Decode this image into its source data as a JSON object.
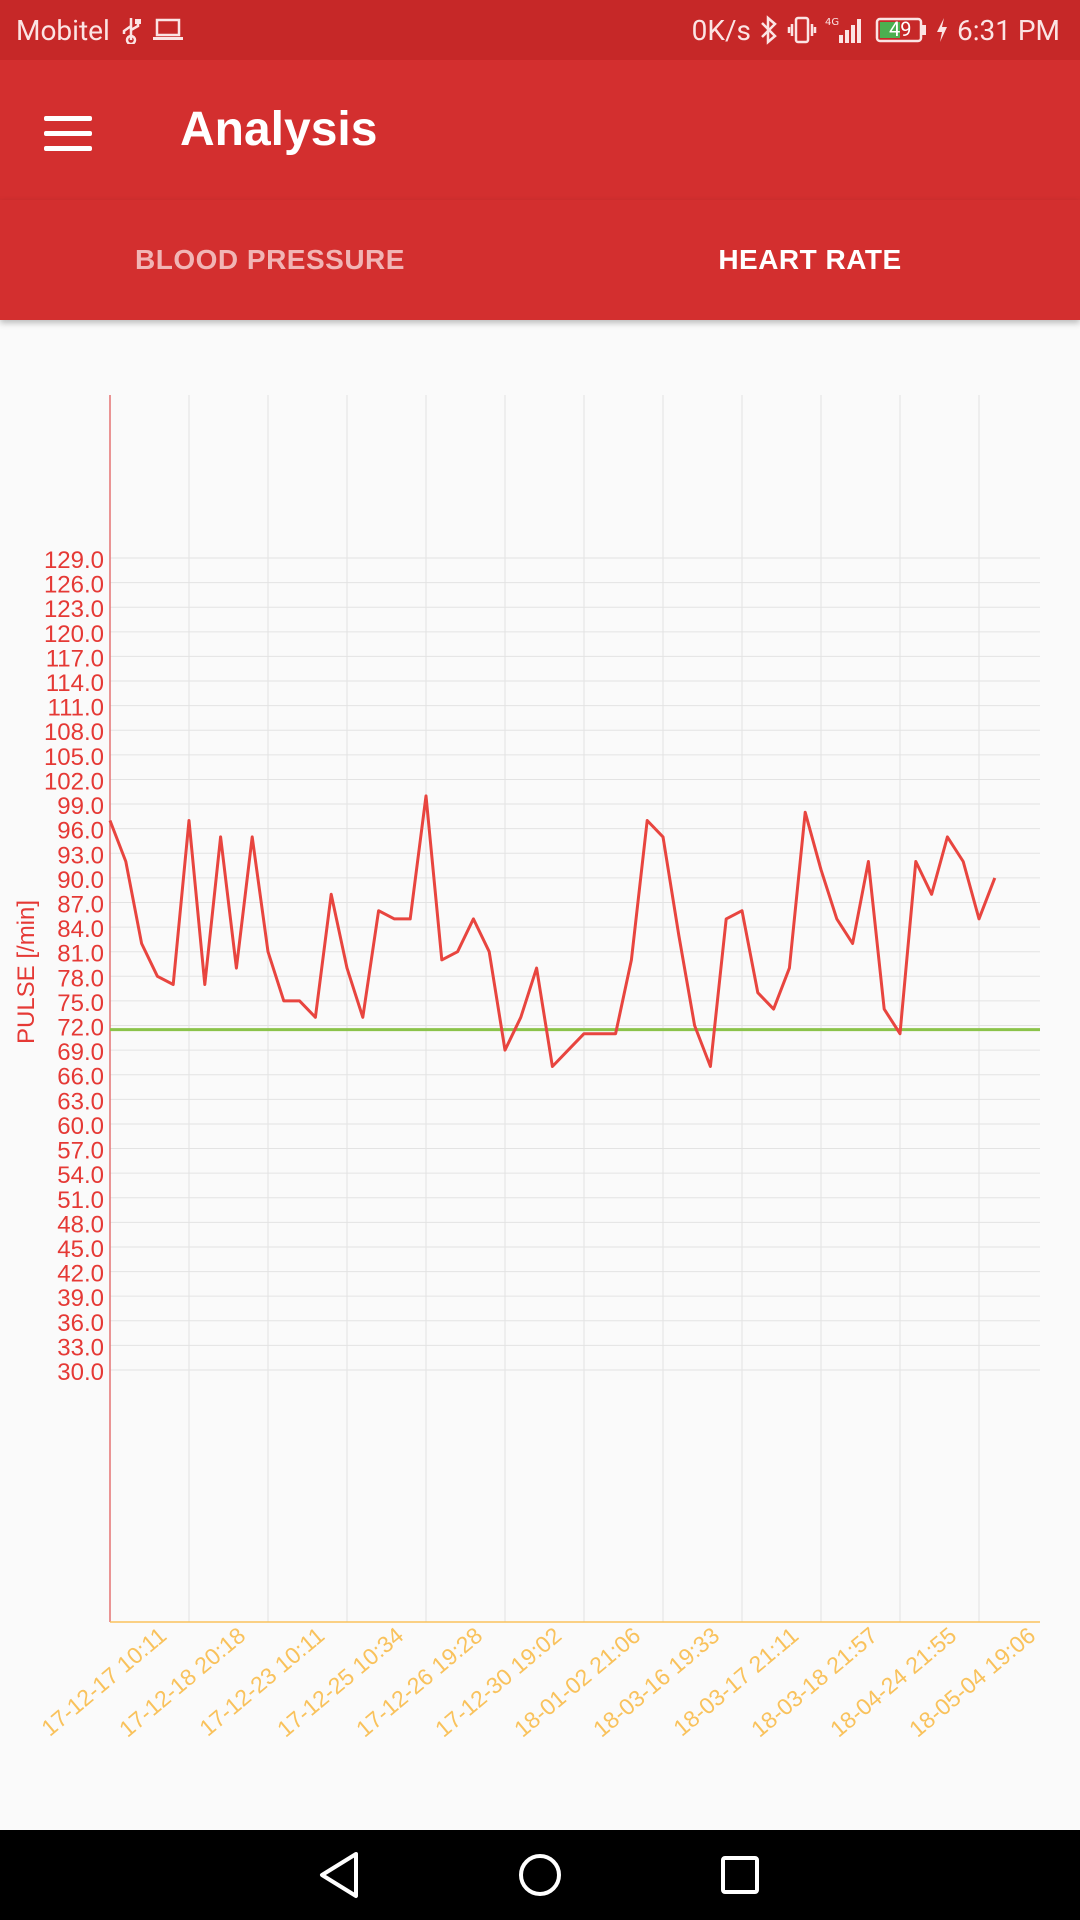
{
  "status_bar": {
    "carrier": "Mobitel",
    "net_speed": "0K/s",
    "battery": "49",
    "time": "6:31 PM"
  },
  "app_bar": {
    "title": "Analysis",
    "menu_icon": "hamburger-menu-icon"
  },
  "tabs": [
    {
      "label": "BLOOD PRESSURE",
      "active": false
    },
    {
      "label": "HEART RATE",
      "active": true
    }
  ],
  "chart_data": {
    "type": "line",
    "ylabel": "PULSE [/min]",
    "yticks": [
      "129.0",
      "126.0",
      "123.0",
      "120.0",
      "117.0",
      "114.0",
      "111.0",
      "108.0",
      "105.0",
      "102.0",
      "99.0",
      "96.0",
      "93.0",
      "90.0",
      "87.0",
      "84.0",
      "81.0",
      "78.0",
      "75.0",
      "72.0",
      "69.0",
      "66.0",
      "63.0",
      "60.0",
      "57.0",
      "54.0",
      "51.0",
      "48.0",
      "45.0",
      "42.0",
      "39.0",
      "36.0",
      "33.0",
      "30.0"
    ],
    "ylim": [
      30,
      129
    ],
    "x_labels": [
      "17-12-17 10:11",
      "17-12-18 20:18",
      "17-12-23 10:11",
      "17-12-25 10:34",
      "17-12-26 19:28",
      "17-12-30 19:02",
      "18-01-02 21:06",
      "18-03-16 19:33",
      "18-03-17 21:11",
      "18-03-18 21:57",
      "18-04-24 21:55",
      "18-05-04 19:06"
    ],
    "series": [
      {
        "color": "#e8453f",
        "values": [
          97,
          92,
          82,
          78,
          77,
          97,
          77,
          95,
          79,
          95,
          81,
          75,
          75,
          73,
          88,
          79,
          73,
          86,
          85,
          85,
          100,
          80,
          81,
          85,
          81,
          69,
          73,
          79,
          67,
          69,
          71,
          71,
          71,
          80,
          97,
          95,
          83,
          72,
          67,
          85,
          86,
          76,
          74,
          79,
          98,
          91,
          85,
          82,
          92,
          74,
          71,
          92,
          88,
          95,
          92,
          85,
          90
        ]
      }
    ],
    "reference_line": {
      "value": 71.5,
      "color": "#8bc34a"
    },
    "colors": {
      "axis_left": "#e57373",
      "x_labels": "#f9c25c",
      "y_labels": "#e53935",
      "grid": "#e3e3e3"
    }
  },
  "nav_bar": {
    "back": "back-icon",
    "home": "home-icon",
    "recents": "recents-icon"
  }
}
